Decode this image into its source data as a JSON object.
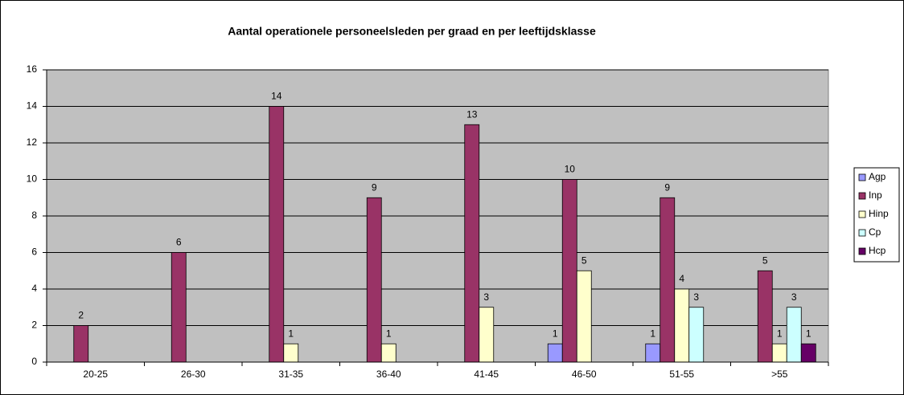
{
  "chart_data": {
    "type": "bar",
    "title": "Aantal operationele personeelsleden per graad en per leeftijdsklasse",
    "categories": [
      "20-25",
      "26-30",
      "31-35",
      "36-40",
      "41-45",
      "46-50",
      "51-55",
      ">55"
    ],
    "series": [
      {
        "name": "Agp",
        "color": "#9999ff",
        "values": [
          null,
          null,
          null,
          null,
          null,
          1,
          1,
          null
        ]
      },
      {
        "name": "Inp",
        "color": "#993366",
        "values": [
          2,
          6,
          14,
          9,
          13,
          10,
          9,
          5
        ]
      },
      {
        "name": "Hinp",
        "color": "#ffffcc",
        "values": [
          null,
          null,
          1,
          1,
          3,
          5,
          4,
          1
        ]
      },
      {
        "name": "Cp",
        "color": "#ccffff",
        "values": [
          null,
          null,
          null,
          null,
          null,
          null,
          3,
          3
        ]
      },
      {
        "name": "Hcp",
        "color": "#660066",
        "values": [
          null,
          null,
          null,
          null,
          null,
          null,
          null,
          1
        ]
      }
    ],
    "ylim": [
      0,
      16
    ],
    "yticks": [
      0,
      2,
      4,
      6,
      8,
      10,
      12,
      14,
      16
    ],
    "grid": true,
    "legend": "right"
  }
}
